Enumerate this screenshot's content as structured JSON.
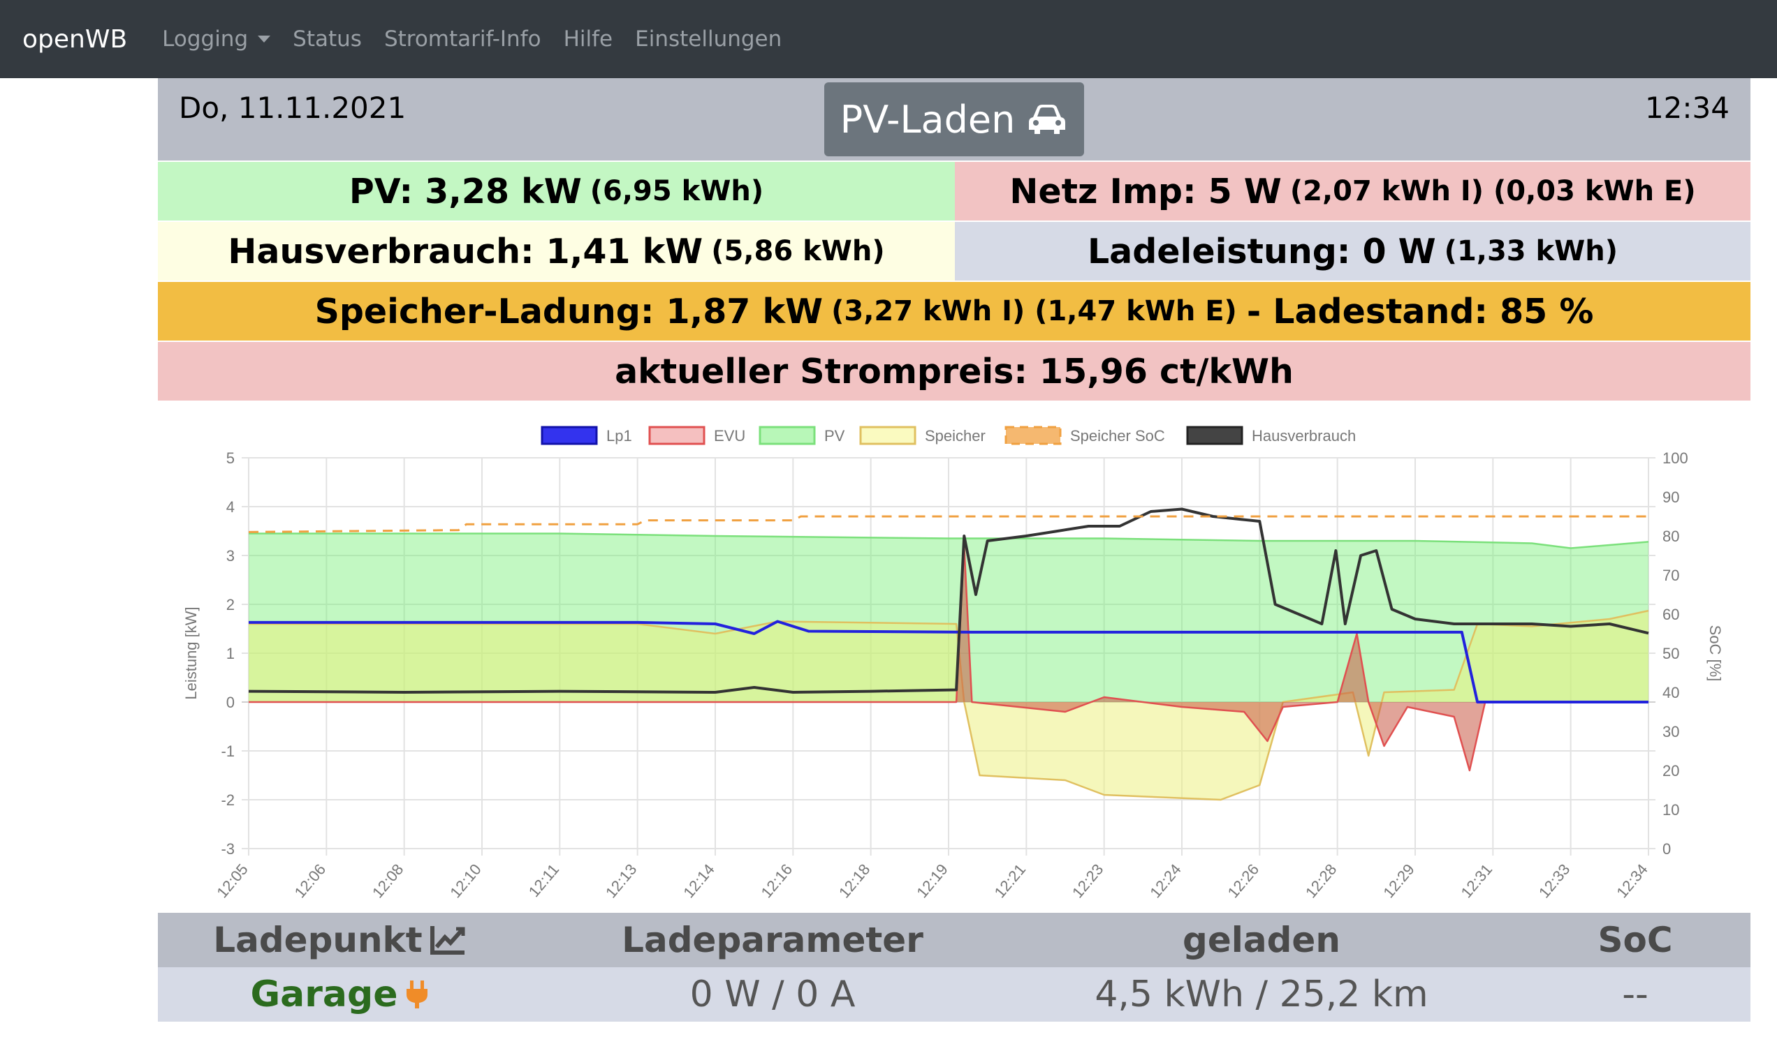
{
  "navbar": {
    "brand": "openWB",
    "items": [
      "Logging",
      "Status",
      "Stromtarif-Info",
      "Hilfe",
      "Einstellungen"
    ]
  },
  "header": {
    "date": "Do, 11.11.2021",
    "time": "12:34",
    "mode": "PV-Laden"
  },
  "info": {
    "pv_label": "PV: 3,28 kW",
    "pv_energy": "(6,95 kWh)",
    "netz_label": "Netz Imp: 5 W",
    "netz_energy": "(2,07 kWh I) (0,03 kWh E)",
    "haus_label": "Hausverbrauch: 1,41 kW",
    "haus_energy": "(5,86 kWh)",
    "lade_label": "Ladeleistung: 0 W",
    "lade_energy": "(1,33 kWh)",
    "speicher_label": "Speicher-Ladung: 1,87 kW",
    "speicher_energy": "(3,27 kWh I) (1,47 kWh E)",
    "speicher_soc": "- Ladestand: 85 %",
    "strompreis": "aktueller Strompreis: 15,96 ct/kWh"
  },
  "colors": {
    "pv_bg": "#c3f7c3",
    "netz_bg": "#f2c3c3",
    "haus_bg": "#fefee3",
    "lade_bg": "#d6dae6",
    "speicher_bg": "#f2bd43",
    "preis_bg": "#f2c3c3"
  },
  "chart_data": {
    "type": "line",
    "y_left_label": "Leistung [kW]",
    "y_right_label": "SoC [%]",
    "y_left_ticks": [
      "5",
      "4",
      "3",
      "2",
      "1",
      "0",
      "-1",
      "-2",
      "-3"
    ],
    "y_right_ticks": [
      "100",
      "90",
      "80",
      "70",
      "60",
      "50",
      "40",
      "30",
      "20",
      "10",
      "0"
    ],
    "ylim": [
      -3,
      5
    ],
    "ylim_right": [
      0,
      100
    ],
    "x_ticks": [
      "12:05",
      "12:06",
      "12:08",
      "12:10",
      "12:11",
      "12:13",
      "12:14",
      "12:16",
      "12:18",
      "12:19",
      "12:21",
      "12:23",
      "12:24",
      "12:26",
      "12:28",
      "12:29",
      "12:31",
      "12:33",
      "12:34"
    ],
    "legend": [
      "Lp1",
      "EVU",
      "PV",
      "Speicher",
      "Speicher SoC",
      "Hausverbrauch"
    ],
    "series": [
      {
        "name": "Lp1",
        "color": "#2222dd",
        "points": [
          [
            0,
            1.63
          ],
          [
            5,
            1.63
          ],
          [
            6,
            1.6
          ],
          [
            6.5,
            1.4
          ],
          [
            6.8,
            1.65
          ],
          [
            7.2,
            1.45
          ],
          [
            9.3,
            1.43
          ],
          [
            13,
            1.43
          ],
          [
            15.6,
            1.43
          ],
          [
            15.8,
            0.0
          ],
          [
            18,
            0.0
          ]
        ]
      },
      {
        "name": "EVU",
        "color": "#e05050",
        "points": [
          [
            0,
            0
          ],
          [
            9.1,
            0
          ],
          [
            9.2,
            3.2
          ],
          [
            9.3,
            0
          ],
          [
            10.5,
            -0.2
          ],
          [
            11,
            0.1
          ],
          [
            12,
            -0.1
          ],
          [
            12.8,
            -0.2
          ],
          [
            13.1,
            -0.8
          ],
          [
            13.3,
            -0.1
          ],
          [
            14,
            0
          ],
          [
            14.25,
            1.4
          ],
          [
            14.4,
            0
          ],
          [
            14.6,
            -0.9
          ],
          [
            14.9,
            -0.1
          ],
          [
            15.5,
            -0.3
          ],
          [
            15.7,
            -1.4
          ],
          [
            15.9,
            0
          ],
          [
            18,
            0
          ]
        ]
      },
      {
        "name": "PV",
        "color": "#7be07b",
        "points": [
          [
            0,
            3.45
          ],
          [
            4,
            3.45
          ],
          [
            6,
            3.4
          ],
          [
            9,
            3.35
          ],
          [
            11,
            3.35
          ],
          [
            13,
            3.3
          ],
          [
            15,
            3.3
          ],
          [
            16.5,
            3.25
          ],
          [
            17,
            3.15
          ],
          [
            18,
            3.28
          ]
        ]
      },
      {
        "name": "Speicher",
        "color": "#e0c060",
        "points": [
          [
            0,
            1.6
          ],
          [
            5,
            1.6
          ],
          [
            6,
            1.4
          ],
          [
            6.8,
            1.65
          ],
          [
            9.1,
            1.6
          ],
          [
            9.2,
            0
          ],
          [
            9.4,
            -1.5
          ],
          [
            10.5,
            -1.6
          ],
          [
            11,
            -1.9
          ],
          [
            12.5,
            -2.0
          ],
          [
            13,
            -1.7
          ],
          [
            13.3,
            0
          ],
          [
            14.2,
            0.2
          ],
          [
            14.4,
            -1.1
          ],
          [
            14.6,
            0.2
          ],
          [
            15.5,
            0.25
          ],
          [
            15.8,
            1.6
          ],
          [
            16.5,
            1.55
          ],
          [
            17.5,
            1.7
          ],
          [
            18,
            1.87
          ]
        ]
      },
      {
        "name": "Speicher SoC",
        "color": "#f0a040",
        "axis": "right",
        "points": [
          [
            0,
            81
          ],
          [
            2.7,
            81.5
          ],
          [
            2.8,
            83
          ],
          [
            5,
            83
          ],
          [
            5.1,
            84
          ],
          [
            7,
            84
          ],
          [
            7.1,
            85
          ],
          [
            18,
            85
          ]
        ]
      },
      {
        "name": "Hausverbrauch",
        "color": "#333333",
        "points": [
          [
            0,
            0.22
          ],
          [
            2,
            0.2
          ],
          [
            4,
            0.22
          ],
          [
            6,
            0.2
          ],
          [
            6.5,
            0.3
          ],
          [
            7,
            0.2
          ],
          [
            8,
            0.22
          ],
          [
            9.1,
            0.25
          ],
          [
            9.2,
            3.4
          ],
          [
            9.35,
            2.2
          ],
          [
            9.5,
            3.3
          ],
          [
            10,
            3.4
          ],
          [
            10.4,
            3.5
          ],
          [
            10.8,
            3.6
          ],
          [
            11.2,
            3.6
          ],
          [
            11.6,
            3.9
          ],
          [
            12,
            3.95
          ],
          [
            12.4,
            3.8
          ],
          [
            13,
            3.7
          ],
          [
            13.2,
            2.0
          ],
          [
            13.5,
            1.8
          ],
          [
            13.8,
            1.6
          ],
          [
            13.98,
            3.1
          ],
          [
            14.1,
            1.6
          ],
          [
            14.3,
            3.0
          ],
          [
            14.5,
            3.1
          ],
          [
            14.7,
            1.9
          ],
          [
            15,
            1.7
          ],
          [
            15.5,
            1.6
          ],
          [
            16,
            1.6
          ],
          [
            16.5,
            1.6
          ],
          [
            17,
            1.55
          ],
          [
            17.5,
            1.6
          ],
          [
            18,
            1.41
          ]
        ]
      }
    ]
  },
  "table": {
    "headers": [
      "Ladepunkt",
      "Ladeparameter",
      "geladen",
      "SoC"
    ],
    "row": {
      "name": "Garage",
      "param": "0 W / 0 A",
      "geladen": "4,5 kWh / 25,2 km",
      "soc": "--"
    }
  }
}
